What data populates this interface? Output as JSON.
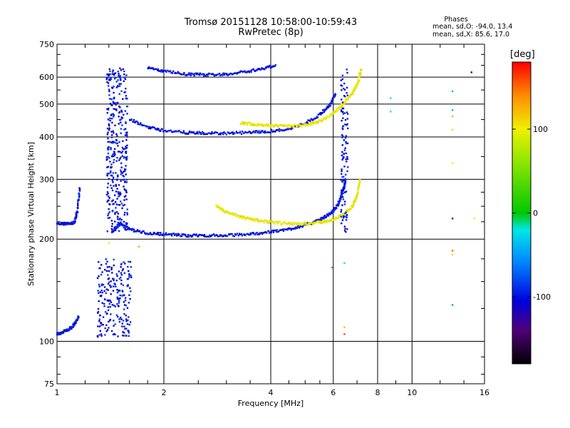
{
  "header": {
    "title": "Tromsø 20151128 10:58:00-10:59:43",
    "subtitle": "RwPretec (8p)"
  },
  "stats": {
    "heading": "Phases",
    "line_o": "mean, sd,O: -94.0, 13.4",
    "line_x": "mean, sd,X:  85.6, 17.0"
  },
  "colorbar": {
    "label": "[deg]",
    "ticks": [
      {
        "value": 100,
        "text": "100"
      },
      {
        "value": 0,
        "text": "0"
      },
      {
        "value": -100,
        "text": "-100"
      }
    ],
    "range": [
      -180,
      180
    ]
  },
  "chart_data": {
    "type": "scatter",
    "title": "Tromsø 20151128 10:58:00-10:59:43",
    "subtitle": "RwPretec (8p)",
    "xlabel": "Frequency [MHz]",
    "ylabel": "Stationary phase Virtual Height [km]",
    "x_scale": "log",
    "y_scale": "log",
    "xlim": [
      1,
      16
    ],
    "ylim": [
      75,
      750
    ],
    "x_ticks": [
      {
        "v": 1,
        "t": "1"
      },
      {
        "v": 2,
        "t": "2"
      },
      {
        "v": 4,
        "t": "4"
      },
      {
        "v": 6,
        "t": "6"
      },
      {
        "v": 8,
        "t": "8"
      },
      {
        "v": 10,
        "t": "10"
      },
      {
        "v": 16,
        "t": "16"
      }
    ],
    "x_grid": [
      2,
      4,
      6,
      8,
      10,
      16
    ],
    "x_minor": [
      1.2,
      1.4,
      1.6,
      1.8,
      2.5,
      3,
      3.5,
      4.5,
      5,
      5.5,
      7,
      9,
      12,
      14
    ],
    "y_ticks": [
      {
        "v": 75,
        "t": "75"
      },
      {
        "v": 100,
        "t": "100"
      },
      {
        "v": 200,
        "t": "200"
      },
      {
        "v": 300,
        "t": "300"
      },
      {
        "v": 400,
        "t": "400"
      },
      {
        "v": 500,
        "t": "500"
      },
      {
        "v": 600,
        "t": "600"
      },
      {
        "v": 750,
        "t": "750"
      }
    ],
    "y_grid": [
      100,
      200,
      300,
      400,
      500,
      600
    ],
    "colorbar_range_deg": [
      -180,
      180
    ],
    "series": [
      {
        "trace": "E-layer",
        "x": [
          1.0,
          1.03,
          1.07,
          1.1,
          1.13,
          1.15
        ],
        "y": [
          105,
          106,
          108,
          110,
          114,
          118
        ],
        "phase": -100
      },
      {
        "trace": "Es-spread",
        "x_range": [
          1.3,
          1.62
        ],
        "y_range": [
          103,
          175
        ],
        "count": 220,
        "phase": -100
      },
      {
        "trace": "low-trace",
        "x": [
          1.0,
          1.05,
          1.1,
          1.12,
          1.14,
          1.16
        ],
        "y": [
          222,
          222,
          222,
          225,
          240,
          285
        ],
        "phase": -100
      },
      {
        "trace": "F1-low-O",
        "x": [
          1.43,
          1.5,
          1.6,
          1.8,
          2.0,
          2.3,
          2.6,
          3.0,
          3.5,
          4.0,
          4.5,
          5.0,
          5.5,
          5.9,
          6.15,
          6.3,
          6.42,
          6.5
        ],
        "y": [
          210,
          222,
          214,
          208,
          207,
          205,
          205,
          205,
          207,
          210,
          214,
          220,
          228,
          238,
          250,
          265,
          282,
          300
        ],
        "phase": -100
      },
      {
        "trace": "F1-low-X",
        "x": [
          2.8,
          3.0,
          3.3,
          3.6,
          4.0,
          4.5,
          5.0,
          5.5,
          6.0,
          6.4,
          6.8,
          7.0,
          7.15
        ],
        "y": [
          250,
          240,
          232,
          228,
          224,
          222,
          222,
          224,
          228,
          236,
          250,
          268,
          300
        ],
        "phase": 100
      },
      {
        "trace": "F2-O",
        "x": [
          1.6,
          1.8,
          2.0,
          2.3,
          2.6,
          3.0,
          3.5,
          4.0,
          4.5,
          5.0,
          5.5,
          5.9,
          6.1
        ],
        "y": [
          450,
          428,
          418,
          412,
          410,
          410,
          412,
          416,
          422,
          438,
          465,
          500,
          540
        ],
        "phase": -100
      },
      {
        "trace": "F2-X",
        "x": [
          3.3,
          3.6,
          4.0,
          4.5,
          5.0,
          5.5,
          6.0,
          6.4,
          6.8,
          7.05,
          7.2
        ],
        "y": [
          440,
          436,
          432,
          430,
          433,
          445,
          468,
          500,
          540,
          580,
          640
        ],
        "phase": 100
      },
      {
        "trace": "high-arc",
        "x": [
          1.8,
          2.0,
          2.3,
          2.6,
          3.0,
          3.4,
          3.8,
          4.15
        ],
        "y": [
          638,
          625,
          612,
          610,
          612,
          622,
          636,
          650
        ],
        "phase": -100
      },
      {
        "trace": "vertical-spread-1.4",
        "x_range": [
          1.38,
          1.58
        ],
        "y_range": [
          210,
          640
        ],
        "count": 380,
        "phase": -100
      },
      {
        "trace": "vertical-6.4",
        "x_range": [
          6.3,
          6.6
        ],
        "y_range": [
          210,
          640
        ],
        "count": 110,
        "phase": -100
      }
    ]
  }
}
